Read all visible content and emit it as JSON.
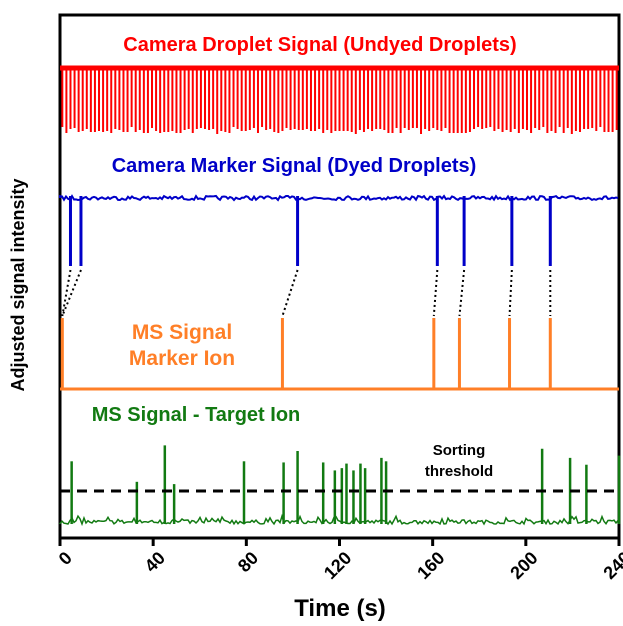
{
  "chart_data": {
    "type": "line",
    "xlabel": "Time (s)",
    "ylabel": "Adjusted signal intensity",
    "xlim": [
      0,
      240
    ],
    "xticks": [
      "0",
      "40",
      "80",
      "120",
      "160",
      "200",
      "240"
    ],
    "grid": false,
    "colors": {
      "camera_droplet": "#ff0000",
      "camera_marker": "#0000c8",
      "ms_marker": "#ff7f27",
      "ms_target": "#127a12",
      "axis": "#000000"
    },
    "series": [
      {
        "name": "Camera Droplet Signal (Undyed Droplets)",
        "description": "periodic droplet dips, approximately every 1.75 s across 0-240 s",
        "period_s": 1.75,
        "count": 137
      },
      {
        "name": "Camera Marker Signal (Dyed Droplets)",
        "dip_times": [
          4.5,
          9,
          102,
          162,
          173.5,
          194,
          210.5
        ]
      },
      {
        "name": "MS Signal Marker Ion",
        "label_lines": [
          "MS Signal",
          "Marker Ion"
        ],
        "peak_times": [
          1,
          95.5,
          160.5,
          171.5,
          193,
          210.5
        ]
      },
      {
        "name": "MS Signal - Target Ion",
        "peak_times": [
          5,
          33,
          45,
          49,
          79,
          96,
          102,
          113,
          118,
          121,
          123,
          126,
          129,
          131,
          138,
          140,
          207,
          219,
          226,
          240
        ],
        "peak_heights": [
          0.55,
          0.37,
          0.69,
          0.35,
          0.55,
          0.54,
          0.64,
          0.54,
          0.47,
          0.49,
          0.53,
          0.47,
          0.53,
          0.49,
          0.58,
          0.55,
          0.66,
          0.58,
          0.52,
          0.6
        ],
        "baseline": 0.03
      }
    ],
    "annotations": {
      "threshold_label_lines": [
        "Sorting",
        "threshold"
      ],
      "connector_pairs": [
        [
          4.5,
          1
        ],
        [
          9,
          1
        ],
        [
          102,
          95.5
        ],
        [
          162,
          160.5
        ],
        [
          173.5,
          171.5
        ],
        [
          194,
          193
        ],
        [
          210.5,
          210.5
        ]
      ]
    }
  }
}
